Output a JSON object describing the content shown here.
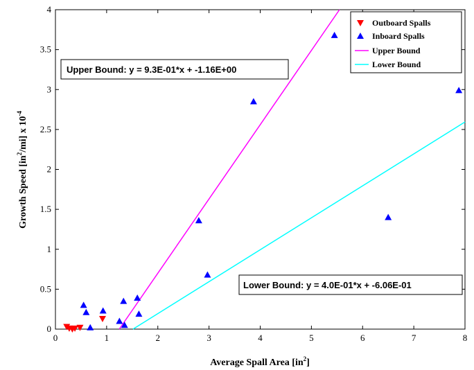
{
  "chart_data": {
    "type": "scatter",
    "xlabel": "Average Spall Area [in",
    "xlabel_sup": "2",
    "xlabel_end": "]",
    "ylabel_a": "Growth Speed [in",
    "ylabel_sup": "2",
    "ylabel_b": "/mi] x 10",
    "ylabel_exp": "-4",
    "xlim": [
      0,
      8
    ],
    "ylim": [
      0,
      4
    ],
    "xticks": [
      0,
      1,
      2,
      3,
      4,
      5,
      6,
      7,
      8
    ],
    "xtick_labels": [
      "0",
      "1",
      "2",
      "3",
      "4",
      "5",
      "6",
      "7",
      "8"
    ],
    "yticks": [
      0,
      0.5,
      1,
      1.5,
      2,
      2.5,
      3,
      3.5,
      4
    ],
    "ytick_labels": [
      "0",
      "0.5",
      "1",
      "1.5",
      "2",
      "2.5",
      "3",
      "3.5",
      "4"
    ],
    "legend_position": "top-right",
    "series": [
      {
        "name": "Outboard Spalls",
        "marker": "triangle-down",
        "color": "#ff0000",
        "x": [
          0.22,
          0.27,
          0.33,
          0.38,
          0.48,
          0.92
        ],
        "y": [
          0.03,
          0.01,
          0.0,
          0.01,
          0.02,
          0.13
        ]
      },
      {
        "name": "Inboard Spalls",
        "marker": "triangle-up",
        "color": "#0000ff",
        "x": [
          0.55,
          0.6,
          0.68,
          0.93,
          1.25,
          1.33,
          1.35,
          1.6,
          1.63,
          2.8,
          2.97,
          3.87,
          5.45,
          6.5,
          7.88
        ],
        "y": [
          0.3,
          0.21,
          0.02,
          0.23,
          0.1,
          0.35,
          0.05,
          0.39,
          0.19,
          1.36,
          0.68,
          2.85,
          3.68,
          1.4,
          2.99
        ]
      },
      {
        "name": "Upper Bound",
        "type": "line",
        "color": "#ff00ff",
        "slope": 0.93,
        "intercept": -1.16
      },
      {
        "name": "Lower Bound",
        "type": "line",
        "color": "#00ffff",
        "slope": 0.4,
        "intercept": -0.606
      }
    ],
    "annotations": {
      "upper": "Upper Bound: y = 9.3E-01*x + -1.16E+00",
      "lower": "Lower Bound: y = 4.0E-01*x + -6.06E-01"
    }
  }
}
